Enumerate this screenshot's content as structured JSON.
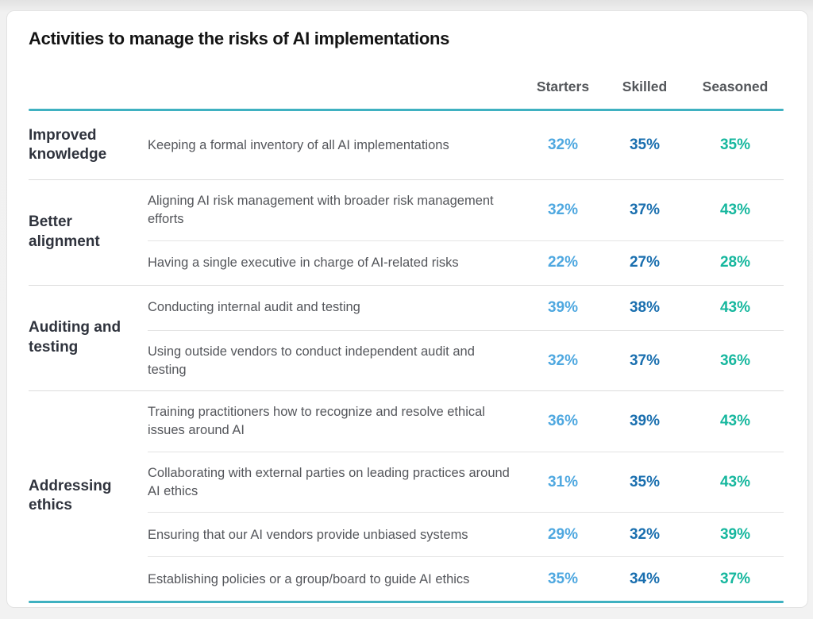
{
  "title": "Activities to manage the risks of AI implementations",
  "chart_data": {
    "type": "table",
    "title": "Activities to manage the risks of AI implementations",
    "columns": [
      "Starters",
      "Skilled",
      "Seasoned"
    ],
    "column_colors": {
      "Starters": "#4FA8E0",
      "Skilled": "#1A6FAF",
      "Seasoned": "#16B79E"
    },
    "accent_line_color": "#3FB1C1",
    "row_groups": [
      {
        "label": "Improved knowledge",
        "rows": [
          {
            "activity": "Keeping a formal inventory of all AI implementations",
            "values": [
              "32%",
              "35%",
              "35%"
            ]
          }
        ]
      },
      {
        "label": "Better alignment",
        "rows": [
          {
            "activity": "Aligning AI risk management with broader risk management efforts",
            "values": [
              "32%",
              "37%",
              "43%"
            ]
          },
          {
            "activity": "Having a single executive in charge of AI-related risks",
            "values": [
              "22%",
              "27%",
              "28%"
            ]
          }
        ]
      },
      {
        "label": "Auditing and testing",
        "rows": [
          {
            "activity": "Conducting internal audit and testing",
            "values": [
              "39%",
              "38%",
              "43%"
            ]
          },
          {
            "activity": "Using outside vendors to conduct independent audit and testing",
            "values": [
              "32%",
              "37%",
              "36%"
            ]
          }
        ]
      },
      {
        "label": "Addressing ethics",
        "rows": [
          {
            "activity": "Training practitioners how to recognize and resolve ethical issues around AI",
            "values": [
              "36%",
              "39%",
              "43%"
            ]
          },
          {
            "activity": "Collaborating with external parties on leading practices around AI ethics",
            "values": [
              "31%",
              "35%",
              "43%"
            ]
          },
          {
            "activity": "Ensuring that our AI vendors provide unbiased systems",
            "values": [
              "29%",
              "32%",
              "39%"
            ]
          },
          {
            "activity": "Establishing policies or a group/board to guide AI ethics",
            "values": [
              "35%",
              "34%",
              "37%"
            ]
          }
        ]
      }
    ]
  }
}
